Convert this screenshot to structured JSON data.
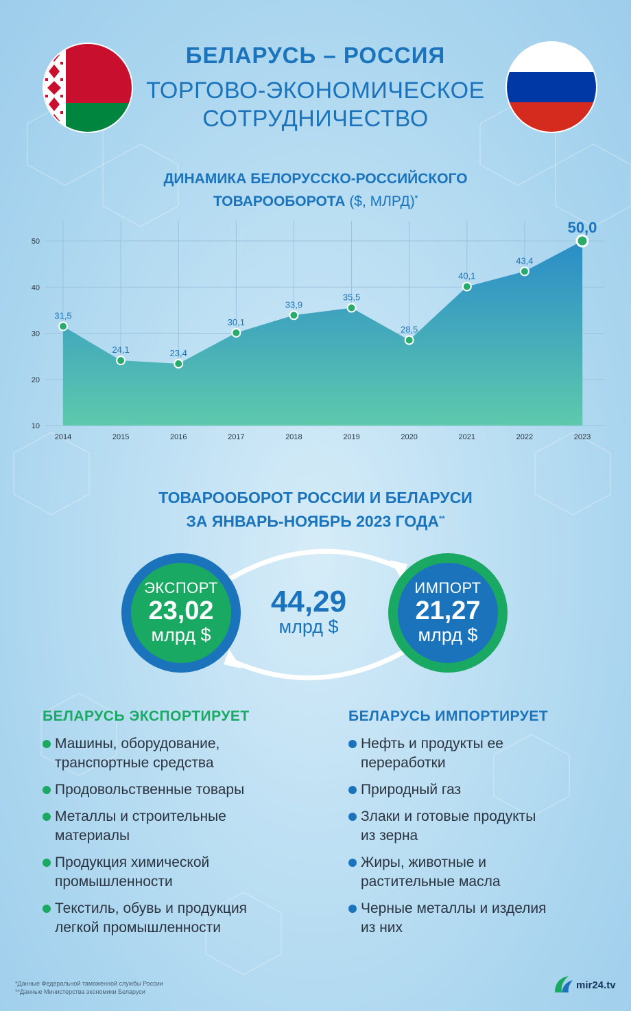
{
  "header": {
    "title": "БЕЛАРУСЬ – РОССИЯ",
    "subtitle_line1": "ТОРГОВО-ЭКОНОМИЧЕСКОЕ",
    "subtitle_line2": "СОТРУДНИЧЕСТВО"
  },
  "chart_section": {
    "title_line1": "ДИНАМИКА БЕЛОРУССКО-РОССИЙСКОГО",
    "title_line2": "ТОВАРООБОРОТА",
    "title_unit": "($, МЛРД)",
    "title_mark": "*"
  },
  "chart_data": {
    "type": "area",
    "x": [
      "2014",
      "2015",
      "2016",
      "2017",
      "2018",
      "2019",
      "2020",
      "2021",
      "2022",
      "2023"
    ],
    "values": [
      31.5,
      24.1,
      23.4,
      30.1,
      33.9,
      35.5,
      28.5,
      40.1,
      43.4,
      50.0
    ],
    "data_labels": [
      "31,5",
      "24,1",
      "23,4",
      "30,1",
      "33,9",
      "35,5",
      "28,5",
      "40,1",
      "43,4",
      "50,0"
    ],
    "yticks": [
      "10",
      "20",
      "30",
      "40",
      "50"
    ],
    "ylim": [
      10,
      50
    ],
    "grid": true,
    "colors": {
      "area_top": "#2a8cc8",
      "area_bottom": "#5ec9ad",
      "point": "#2aab6e",
      "label": "#1b74bb"
    }
  },
  "trade_section": {
    "title_line1": "ТОВАРООБОРОТ РОССИИ И БЕЛАРУСИ",
    "title_line2": "ЗА ЯНВАРЬ-НОЯБРЬ 2023 ГОДА",
    "title_mark": "**",
    "export": {
      "label": "ЭКСПОРТ",
      "value": "23,02",
      "unit": "млрд $"
    },
    "import": {
      "label": "ИМПОРТ",
      "value": "21,27",
      "unit": "млрд $"
    },
    "total": {
      "value": "44,29",
      "unit": "млрд $"
    }
  },
  "exports_list": {
    "heading": "БЕЛАРУСЬ ЭКСПОРТИРУЕТ",
    "items": [
      {
        "line1": "Машины, оборудование,",
        "line2": "транспортные средства"
      },
      {
        "line1": "Продовольственные товары",
        "line2": ""
      },
      {
        "line1": "Металлы и строительные",
        "line2": "материалы"
      },
      {
        "line1": "Продукция химической",
        "line2": "промышленности"
      },
      {
        "line1": "Текстиль, обувь и продукция",
        "line2": "легкой промышленности"
      }
    ]
  },
  "imports_list": {
    "heading": "БЕЛАРУСЬ ИМПОРТИРУЕТ",
    "items": [
      {
        "line1": "Нефть и продукты ее",
        "line2": "переработки"
      },
      {
        "line1": "Природный газ",
        "line2": ""
      },
      {
        "line1": "Злаки и готовые продукты",
        "line2": "из зерна"
      },
      {
        "line1": "Жиры, животные и",
        "line2": "растительные масла"
      },
      {
        "line1": "Черные металлы и изделия",
        "line2": "из них"
      }
    ]
  },
  "footnotes": {
    "note1": "*Данные Федеральной таможенной службы России",
    "note2": "**Данные Министерства экономики Беларуси"
  },
  "logo": {
    "text": "mir24.tv"
  },
  "colors": {
    "blue": "#1b74bb",
    "green": "#1aa963",
    "text_dark": "#2b3440"
  }
}
